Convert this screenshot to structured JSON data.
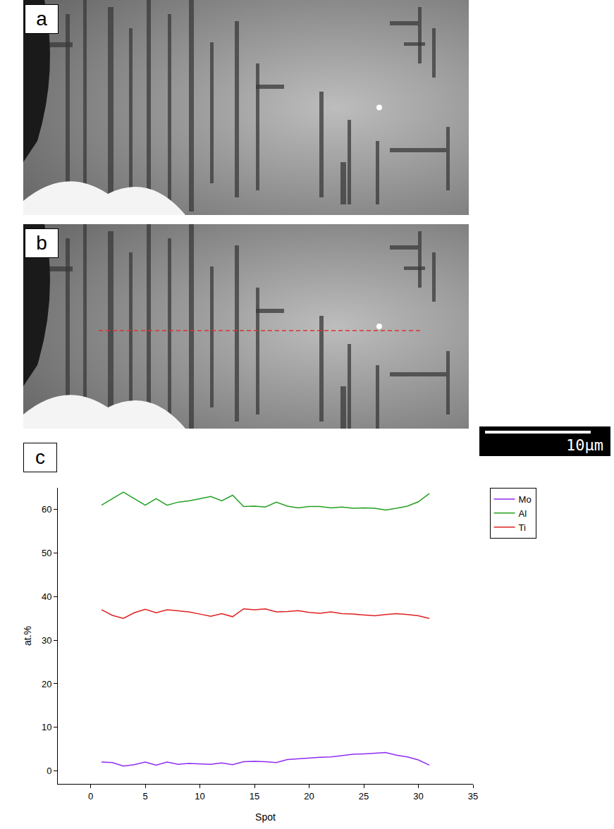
{
  "panels": [
    {
      "label": "a"
    },
    {
      "label": "b",
      "line_style": "dashed",
      "color": "#e03030"
    }
  ],
  "scale_bar": "10μm",
  "chart_label": "c",
  "chart_data": {
    "type": "line",
    "x_label": "Spot",
    "y_label": "at.%",
    "x": [
      1,
      2,
      3,
      4,
      5,
      6,
      7,
      8,
      9,
      10,
      11,
      12,
      13,
      14,
      15,
      16,
      17,
      18,
      19,
      20,
      21,
      22,
      23,
      24,
      25,
      26,
      27,
      28,
      29,
      30,
      31
    ],
    "series": [
      {
        "name": "Mo",
        "color": "#8f2cf0",
        "values": [
          2,
          1.9,
          1.1,
          1.4,
          2,
          1.3,
          2,
          1.5,
          1.7,
          1.6,
          1.5,
          1.8,
          1.4,
          2.1,
          2.2,
          2.1,
          1.9,
          2.6,
          2.8,
          2.9,
          3.1,
          3.2,
          3.5,
          3.8,
          3.9,
          4.1,
          4.2,
          3.6,
          3.2,
          2.5,
          1.3
        ]
      },
      {
        "name": "Al",
        "color": "#22a022",
        "values": [
          61,
          62.5,
          64,
          62.5,
          61,
          62.5,
          61,
          61.7,
          62,
          62.5,
          63,
          62,
          63.3,
          60.7,
          60.8,
          60.6,
          61.7,
          60.8,
          60.4,
          60.7,
          60.7,
          60.4,
          60.6,
          60.3,
          60.4,
          60.3,
          59.9,
          60.3,
          60.8,
          61.8,
          63.7
        ]
      },
      {
        "name": "Ti",
        "color": "#e02020",
        "values": [
          37,
          35.7,
          35,
          36.3,
          37.1,
          36.3,
          37,
          36.8,
          36.5,
          36,
          35.5,
          36.1,
          35.4,
          37.2,
          37,
          37.2,
          36.5,
          36.6,
          36.8,
          36.4,
          36.2,
          36.5,
          36.1,
          36,
          35.8,
          35.6,
          35.9,
          36.1,
          35.9,
          35.6,
          35
        ]
      }
    ],
    "xlim": [
      -3,
      35
    ],
    "xticks": [
      0,
      5,
      10,
      15,
      20,
      25,
      30,
      35
    ],
    "ylim": [
      -3,
      65
    ],
    "yticks": [
      0,
      10,
      20,
      30,
      40,
      50,
      60
    ],
    "grid": false,
    "legend": "right"
  }
}
